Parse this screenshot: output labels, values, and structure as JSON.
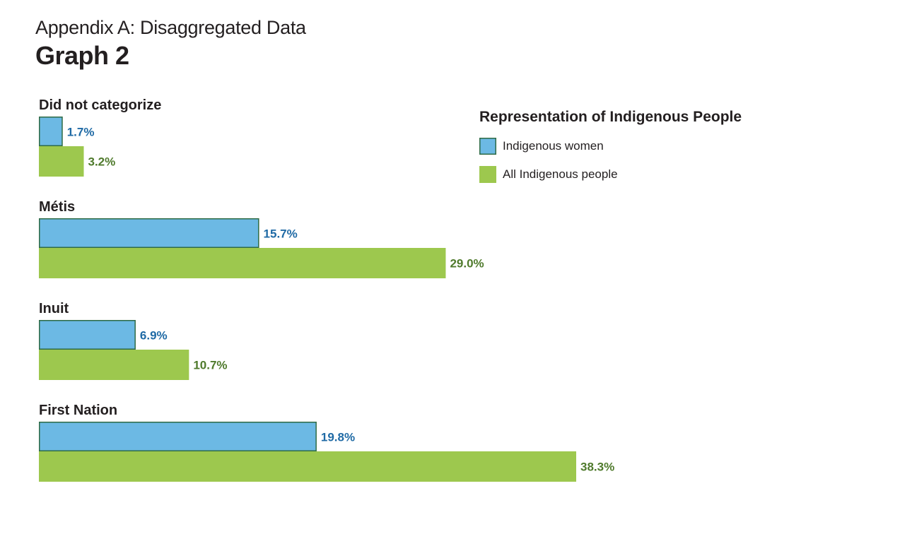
{
  "header": {
    "subtitle": "Appendix A: Disaggregated Data",
    "title": "Graph 2"
  },
  "chart_data": {
    "type": "bar",
    "orientation": "horizontal",
    "legend_title": "Representation of Indigenous People",
    "legend_position": "top-right",
    "categories": [
      "Did not categorize",
      "Métis",
      "Inuit",
      "First Nation"
    ],
    "series": [
      {
        "name": "Indigenous women",
        "values": [
          1.7,
          15.7,
          6.9,
          19.8
        ],
        "labels": [
          "1.7%",
          "15.7%",
          "6.9%",
          "19.8%"
        ],
        "color": "#6cb9e4",
        "stroke": "#2f6b45",
        "label_color": "#1f6aa5"
      },
      {
        "name": "All Indigenous people",
        "values": [
          3.2,
          29.0,
          10.7,
          38.3
        ],
        "labels": [
          "3.2%",
          "29.0%",
          "10.7%",
          "38.3%"
        ],
        "color": "#9dc84e",
        "stroke": "none",
        "label_color": "#4f7a2c"
      }
    ],
    "xlim": [
      0,
      38.3
    ],
    "grid": false
  }
}
